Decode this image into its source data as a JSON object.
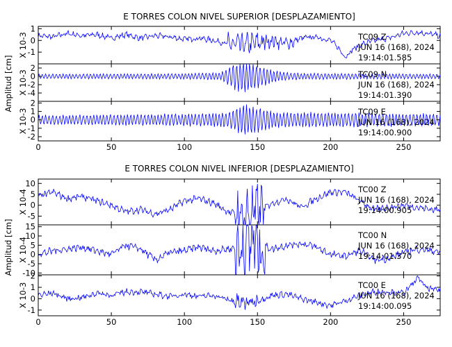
{
  "chart_data": [
    {
      "type": "line",
      "title": "E TORRES COLON NIVEL SUPERIOR [DESPLAZAMIENTO]",
      "ylabel": "Amplitud [cm]",
      "xlim": [
        0,
        275
      ],
      "xticks": [
        "0",
        "50",
        "100",
        "150",
        "200",
        "250"
      ],
      "color": "#0000ff",
      "panels": [
        {
          "scale_label": "X 10-3",
          "ylim": [
            -2,
            1.2
          ],
          "yticks": [
            "1",
            "0",
            "-1"
          ],
          "annotation": [
            "TC09  Z",
            "JUN 16 (168), 2024",
            "19:14:01.585"
          ],
          "series": {
            "name": "TC09 Z",
            "x": [
              0,
              10,
              20,
              30,
              40,
              50,
              60,
              70,
              80,
              90,
              100,
              110,
              120,
              130,
              140,
              150,
              160,
              170,
              180,
              190,
              200,
              205,
              210,
              215,
              220,
              230,
              240,
              250,
              260,
              270,
              275
            ],
            "values": [
              0.4,
              0.3,
              0.6,
              0.4,
              0.5,
              0.2,
              0.5,
              0.2,
              0.4,
              0.3,
              0.1,
              0.2,
              0.0,
              -0.3,
              -0.4,
              -0.2,
              0.0,
              -0.3,
              0.2,
              0.3,
              0.0,
              -0.6,
              -1.4,
              -0.8,
              -0.4,
              0.0,
              0.2,
              0.6,
              0.7,
              0.5,
              0.4
            ],
            "burst": [
              [
                130,
                155,
                0.6
              ],
              [
                155,
                175,
                0.3
              ]
            ]
          }
        },
        {
          "scale_label": "X 10-3",
          "ylim": [
            -6,
            3
          ],
          "yticks": [
            "2",
            "0",
            "-2",
            "-4"
          ],
          "annotation": [
            "TC09  N",
            "JUN 16 (168), 2024",
            "19:14:01.390"
          ],
          "series": {
            "name": "TC09 N",
            "x": [
              0,
              20,
              40,
              60,
              80,
              100,
              120,
              130,
              140,
              150,
              160,
              180,
              200,
              220,
              240,
              260,
              275
            ],
            "values": [
              0,
              0,
              0,
              0,
              0,
              0,
              0,
              0,
              0,
              0,
              0,
              0,
              0,
              0,
              0,
              0,
              0
            ],
            "envelope": [
              [
                0,
                0.6
              ],
              [
                100,
                0.7
              ],
              [
                125,
                1.0
              ],
              [
                135,
                3.5
              ],
              [
                140,
                4.5
              ],
              [
                150,
                3.0
              ],
              [
                165,
                1.2
              ],
              [
                180,
                0.8
              ],
              [
                275,
                0.6
              ]
            ]
          }
        },
        {
          "scale_label": "X 10-3",
          "ylim": [
            -2.5,
            2.2
          ],
          "yticks": [
            "2",
            "1",
            "0",
            "-1",
            "-2"
          ],
          "annotation": [
            "TC09  E",
            "JUN 16 (168), 2024",
            "19:14:00.900"
          ],
          "series": {
            "name": "TC09 E",
            "x": [
              0,
              50,
              100,
              150,
              200,
              250,
              275
            ],
            "values": [
              0,
              0,
              0,
              0,
              0,
              0,
              0
            ],
            "envelope": [
              [
                0,
                0.6
              ],
              [
                110,
                0.8
              ],
              [
                130,
                1.0
              ],
              [
                140,
                2.0
              ],
              [
                150,
                1.6
              ],
              [
                165,
                1.0
              ],
              [
                275,
                0.8
              ]
            ]
          }
        }
      ]
    },
    {
      "type": "line",
      "title": "E TORRES COLON NIVEL INFERIOR [DESPLAZAMIENTO]",
      "ylabel": "Amplitud [cm]",
      "xlim": [
        0,
        275
      ],
      "xticks": [
        "0",
        "50",
        "100",
        "150",
        "200",
        "250"
      ],
      "color": "#0000ff",
      "panels": [
        {
          "scale_label": "X 10-4",
          "ylim": [
            -9,
            12
          ],
          "yticks": [
            "10",
            "5",
            "0",
            "-5"
          ],
          "annotation": [
            "TC00  Z",
            "JUN 16 (168), 2024",
            "19:14:00.905"
          ],
          "series": {
            "name": "TC00 Z",
            "x": [
              0,
              10,
              20,
              30,
              40,
              50,
              60,
              70,
              80,
              90,
              100,
              110,
              120,
              130,
              140,
              150,
              160,
              170,
              180,
              190,
              200,
              210,
              220,
              230,
              240,
              250,
              260,
              270,
              275
            ],
            "values": [
              4,
              6,
              3,
              4,
              2,
              0,
              -3,
              -2,
              -4,
              -2,
              2,
              3,
              1,
              -3,
              -5,
              -3,
              1,
              3,
              -1,
              3,
              6,
              6,
              2,
              -2,
              -1,
              0,
              -1,
              -2,
              -2
            ],
            "burst": [
              [
                135,
                155,
                1.5
              ]
            ]
          }
        },
        {
          "scale_label": "X 10-4",
          "ylim": [
            -11,
            16
          ],
          "yticks": [
            "15",
            "10",
            "5",
            "0",
            "-5",
            "-10"
          ],
          "annotation": [
            "TC00  N",
            "JUN 16 (168), 2024",
            "19:14:01.370"
          ],
          "series": {
            "name": "TC00 N",
            "x": [
              0,
              10,
              20,
              30,
              40,
              50,
              60,
              70,
              80,
              90,
              100,
              110,
              120,
              130,
              140,
              145,
              150,
              160,
              170,
              180,
              190,
              200,
              210,
              220,
              230,
              240,
              250,
              260,
              270,
              275
            ],
            "values": [
              0,
              2,
              3,
              4,
              2,
              0,
              5,
              3,
              -3,
              1,
              2,
              4,
              2,
              3,
              4,
              8,
              6,
              3,
              5,
              6,
              4,
              0,
              -1,
              2,
              -3,
              -2,
              1,
              3,
              2,
              1
            ],
            "burst": [
              [
                135,
                155,
                2.5
              ]
            ]
          }
        },
        {
          "scale_label": "X 10-3",
          "ylim": [
            -1.5,
            2.1
          ],
          "yticks": [
            "2",
            "1",
            "0",
            "-1"
          ],
          "annotation": [
            "TC00  E",
            "JUN 16 (168), 2024",
            "19:14:00.095"
          ],
          "series": {
            "name": "TC00 E",
            "x": [
              0,
              10,
              20,
              30,
              40,
              50,
              60,
              70,
              80,
              90,
              100,
              110,
              120,
              130,
              140,
              150,
              160,
              170,
              180,
              190,
              200,
              210,
              220,
              230,
              240,
              250,
              255,
              260,
              265,
              270,
              275
            ],
            "values": [
              0.3,
              0.5,
              0.0,
              0.1,
              0.5,
              0.3,
              0.6,
              0.6,
              0.4,
              0.2,
              0.4,
              0.2,
              0.3,
              -0.1,
              -0.4,
              -0.2,
              0.3,
              0.4,
              0.0,
              -0.3,
              -0.6,
              -0.2,
              0.3,
              0.6,
              0.6,
              0.5,
              1.1,
              1.9,
              1.0,
              0.8,
              0.8
            ],
            "burst": [
              [
                132,
                150,
                0.35
              ]
            ]
          }
        }
      ]
    }
  ]
}
